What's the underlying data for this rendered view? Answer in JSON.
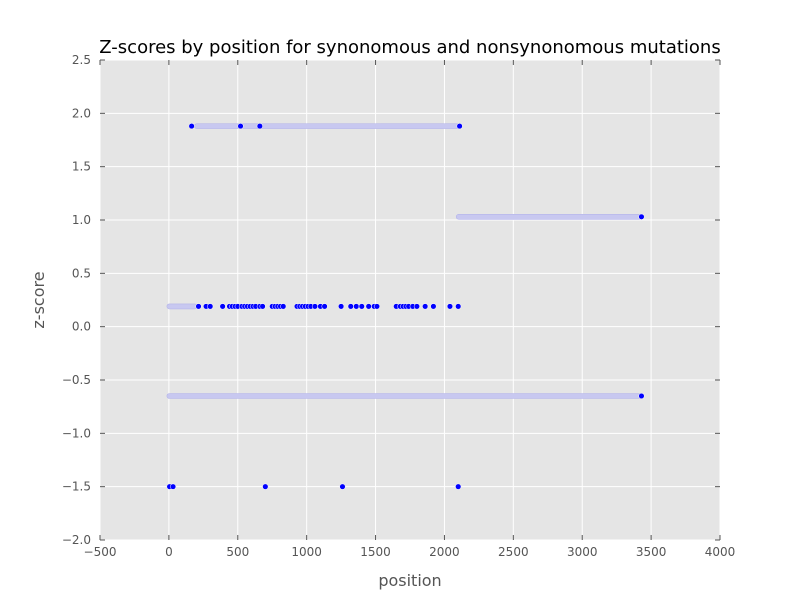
{
  "chart_data": {
    "type": "scatter",
    "title": "Z-scores by position for synonomous and nonsynonomous mutations",
    "xlabel": "position",
    "ylabel": "z-score",
    "xlim": [
      -500,
      4000
    ],
    "ylim": [
      -2.0,
      2.5
    ],
    "x_ticks": [
      -500,
      0,
      500,
      1000,
      1500,
      2000,
      2500,
      3000,
      3500,
      4000
    ],
    "y_ticks": [
      -2.0,
      -1.5,
      -1.0,
      -0.5,
      0.0,
      0.5,
      1.0,
      1.5,
      2.0,
      2.5
    ],
    "x_tick_labels": [
      "−500",
      "0",
      "500",
      "1000",
      "1500",
      "2000",
      "2500",
      "3000",
      "3500",
      "4000"
    ],
    "y_tick_labels": [
      "−2.0",
      "−1.5",
      "−1.0",
      "−0.5",
      "0.0",
      "0.5",
      "1.0",
      "1.5",
      "2.0",
      "2.5"
    ],
    "grid": true,
    "background_color": "#e5e5e5",
    "point_color": "#0000ff",
    "faint_point_color": "#c8c8f0",
    "series": [
      {
        "faint_ranges": [
          [
            200,
            2100
          ]
        ],
        "x": [
          165,
          520,
          660,
          2110
        ],
        "y": 1.88
      },
      {
        "faint_ranges": [
          [
            2100,
            3420
          ]
        ],
        "x": [
          3430
        ],
        "y": 1.03
      },
      {
        "faint_ranges": [
          [
            0,
            190
          ]
        ],
        "x": [
          215,
          270,
          300,
          390,
          440,
          460,
          480,
          500,
          530,
          550,
          570,
          590,
          610,
          630,
          660,
          680,
          750,
          770,
          790,
          810,
          830,
          930,
          950,
          970,
          990,
          1010,
          1030,
          1060,
          1100,
          1130,
          1250,
          1320,
          1360,
          1400,
          1450,
          1490,
          1510,
          1650,
          1680,
          1700,
          1720,
          1740,
          1770,
          1800,
          1860,
          1920,
          2040,
          2100
        ],
        "y": 0.19
      },
      {
        "faint_ranges": [
          [
            0,
            3420
          ]
        ],
        "x": [
          3430
        ],
        "y": -0.65
      },
      {
        "faint_ranges": [],
        "x": [
          5,
          30,
          700,
          1260,
          2100
        ],
        "y": -1.5
      }
    ]
  }
}
